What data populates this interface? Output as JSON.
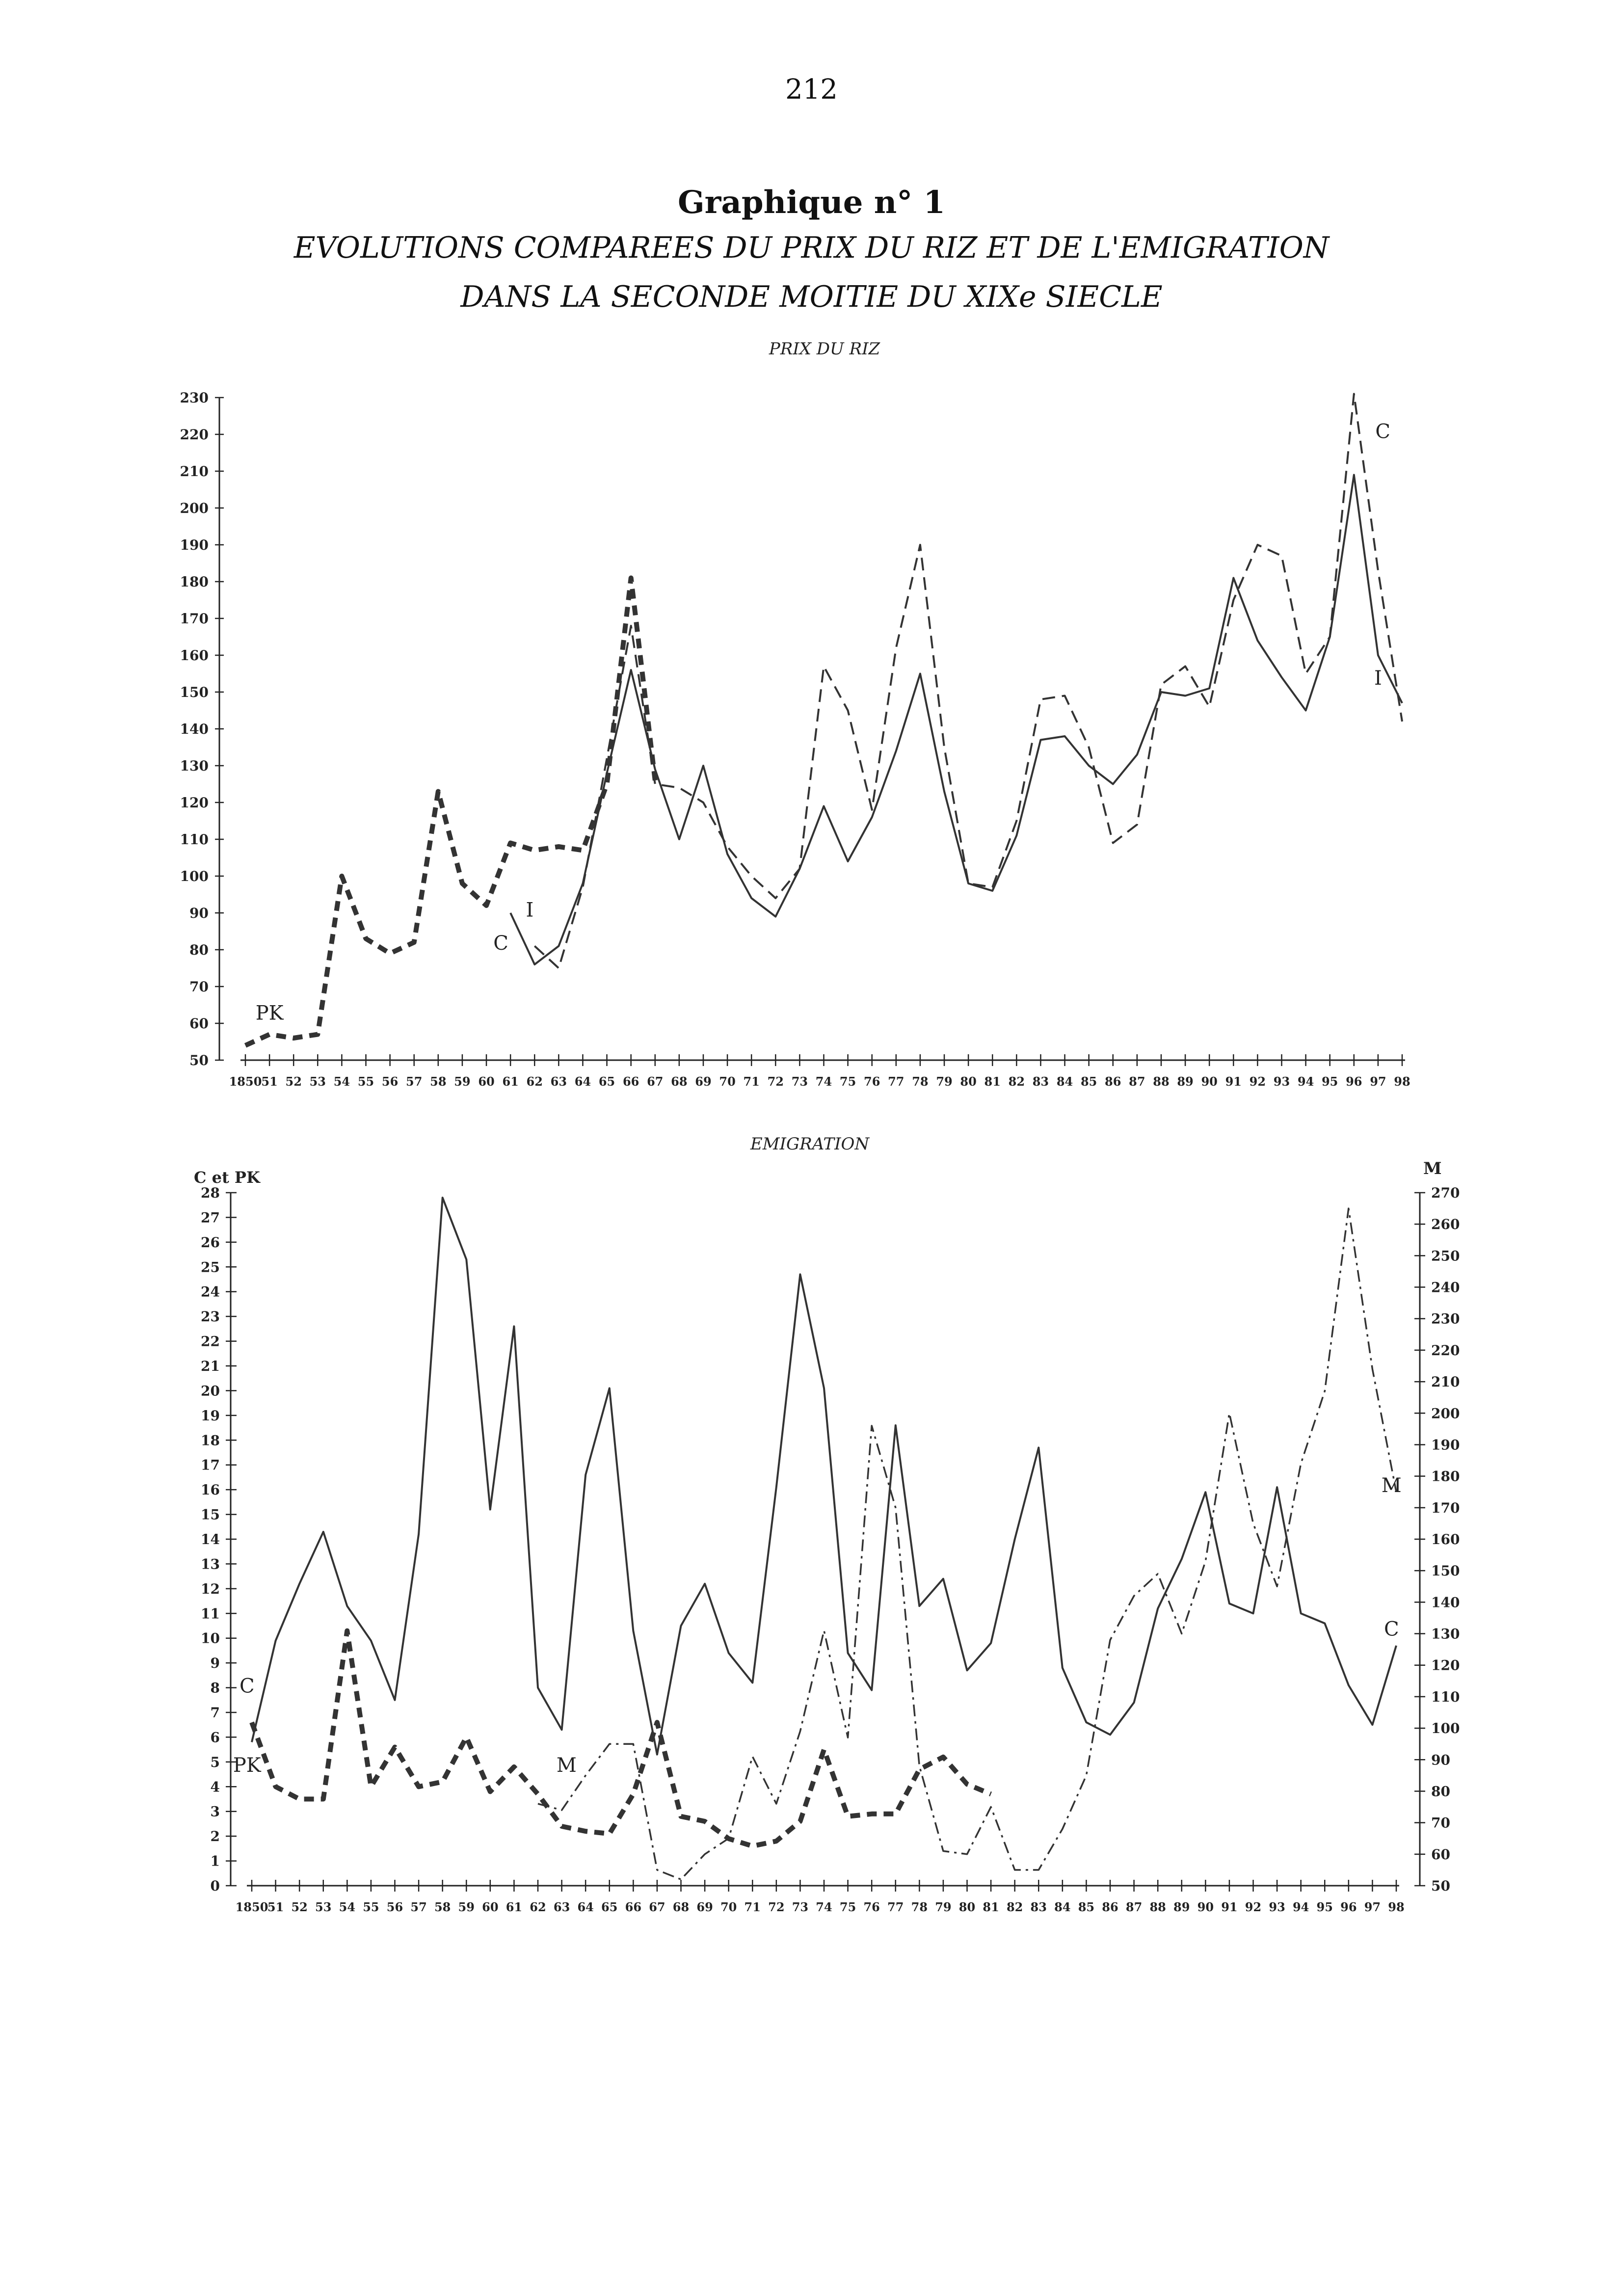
{
  "page": {
    "number": "212",
    "title": "Graphique n° 1",
    "subtitle_line1": "EVOLUTIONS COMPAREES DU PRIX DU RIZ ET DE L'EMIGRATION",
    "subtitle_line2": "DANS LA SECONDE MOITIE DU XIXe SIECLE"
  },
  "chart_data": [
    {
      "type": "line",
      "title": "PRIX DU RIZ",
      "xlabel": "",
      "ylabel": "",
      "ylim": [
        50,
        230
      ],
      "y_ticks": [
        50,
        60,
        70,
        80,
        90,
        100,
        110,
        120,
        130,
        140,
        150,
        160,
        170,
        180,
        190,
        200,
        210,
        220,
        230
      ],
      "x_tick_labels": [
        "1850",
        "51",
        "52",
        "53",
        "54",
        "55",
        "56",
        "57",
        "58",
        "59",
        "60",
        "61",
        "62",
        "63",
        "64",
        "65",
        "66",
        "67",
        "68",
        "69",
        "70",
        "71",
        "72",
        "73",
        "74",
        "75",
        "76",
        "77",
        "78",
        "79",
        "80",
        "81",
        "82",
        "83",
        "84",
        "85",
        "86",
        "87",
        "88",
        "89",
        "90",
        "91",
        "92",
        "93",
        "94",
        "95",
        "96",
        "97",
        "98"
      ],
      "grid": false,
      "series": [
        {
          "name": "PK",
          "style": "bold-dash",
          "x": [
            1850,
            1851,
            1852,
            1853,
            1854,
            1855,
            1856,
            1857,
            1858,
            1859,
            1860,
            1861,
            1862,
            1863,
            1864,
            1865,
            1866,
            1867
          ],
          "values": [
            54,
            57,
            56,
            57,
            100,
            83,
            79,
            82,
            123,
            98,
            92,
            109,
            107,
            108,
            107,
            125,
            181,
            126
          ]
        },
        {
          "name": "C",
          "style": "dashed",
          "x": [
            1862,
            1863,
            1864,
            1865,
            1866,
            1867,
            1868,
            1869,
            1870,
            1871,
            1872,
            1873,
            1874,
            1875,
            1876,
            1877,
            1878,
            1879,
            1880,
            1881,
            1882,
            1883,
            1884,
            1885,
            1886,
            1887,
            1888,
            1889,
            1890,
            1891,
            1892,
            1893,
            1894,
            1895,
            1896,
            1897,
            1898
          ],
          "values": [
            81,
            75,
            97,
            132,
            168,
            125,
            124,
            120,
            108,
            100,
            94,
            102,
            157,
            145,
            118,
            162,
            190,
            135,
            98,
            97,
            115,
            148,
            149,
            135,
            109,
            114,
            152,
            157,
            146,
            175,
            190,
            187,
            155,
            165,
            231,
            183,
            142
          ]
        },
        {
          "name": "I",
          "style": "solid",
          "x": [
            1861,
            1862,
            1863,
            1864,
            1865,
            1866,
            1867,
            1868,
            1869,
            1870,
            1871,
            1872,
            1873,
            1874,
            1875,
            1876,
            1877,
            1878,
            1879,
            1880,
            1881,
            1882,
            1883,
            1884,
            1885,
            1886,
            1887,
            1888,
            1889,
            1890,
            1891,
            1892,
            1893,
            1894,
            1895,
            1896,
            1897,
            1898
          ],
          "values": [
            90,
            76,
            81,
            98,
            128,
            156,
            129,
            110,
            130,
            106,
            94,
            89,
            102,
            119,
            104,
            116,
            134,
            155,
            123,
            98,
            96,
            111,
            137,
            138,
            130,
            125,
            133,
            150,
            149,
            151,
            181,
            164,
            154,
            145,
            165,
            209,
            160,
            147
          ]
        }
      ],
      "annotations": [
        {
          "text": "PK",
          "x": 1851,
          "y": 61
        },
        {
          "text": "C",
          "x": 1860.6,
          "y": 80
        },
        {
          "text": "I",
          "x": 1861.8,
          "y": 89
        },
        {
          "text": "C",
          "x": 1897.2,
          "y": 219
        },
        {
          "text": "I",
          "x": 1897.0,
          "y": 152
        }
      ]
    },
    {
      "type": "line",
      "title": "EMIGRATION",
      "xlabel": "",
      "ylabel_left": "C et PK",
      "ylabel_right": "M",
      "ylim_left": [
        0,
        28
      ],
      "ylim_right": [
        50,
        270
      ],
      "y_ticks_left": [
        0,
        1,
        2,
        3,
        4,
        5,
        6,
        7,
        8,
        9,
        10,
        11,
        12,
        13,
        14,
        15,
        16,
        17,
        18,
        19,
        20,
        21,
        22,
        23,
        24,
        25,
        26,
        27,
        28
      ],
      "y_ticks_right": [
        50,
        60,
        70,
        80,
        90,
        100,
        110,
        120,
        130,
        140,
        150,
        160,
        170,
        180,
        190,
        200,
        210,
        220,
        230,
        240,
        250,
        260,
        270
      ],
      "x_tick_labels": [
        "1850",
        "51",
        "52",
        "53",
        "54",
        "55",
        "56",
        "57",
        "58",
        "59",
        "60",
        "61",
        "62",
        "63",
        "64",
        "65",
        "66",
        "67",
        "68",
        "69",
        "70",
        "71",
        "72",
        "73",
        "74",
        "75",
        "76",
        "77",
        "78",
        "79",
        "80",
        "81",
        "82",
        "83",
        "84",
        "85",
        "86",
        "87",
        "88",
        "89",
        "90",
        "91",
        "92",
        "93",
        "94",
        "95",
        "96",
        "97",
        "98"
      ],
      "grid": false,
      "series": [
        {
          "name": "C",
          "style": "solid",
          "axis": "left",
          "x": [
            1850,
            1851,
            1852,
            1853,
            1854,
            1855,
            1856,
            1857,
            1858,
            1859,
            1860,
            1861,
            1862,
            1863,
            1864,
            1865,
            1866,
            1867,
            1868,
            1869,
            1870,
            1871,
            1872,
            1873,
            1874,
            1875,
            1876,
            1877,
            1878,
            1879,
            1880,
            1881,
            1882,
            1883,
            1884,
            1885,
            1886,
            1887,
            1888,
            1889,
            1890,
            1891,
            1892,
            1893,
            1894,
            1895,
            1896,
            1897,
            1898
          ],
          "values": [
            5.8,
            9.9,
            12.2,
            14.3,
            11.3,
            9.9,
            7.5,
            14.2,
            27.8,
            25.3,
            15.2,
            22.6,
            8.0,
            6.3,
            16.6,
            20.1,
            10.3,
            5.3,
            10.5,
            12.2,
            9.4,
            8.2,
            16.1,
            24.7,
            20.1,
            9.4,
            7.9,
            18.6,
            11.3,
            12.4,
            8.7,
            9.8,
            14.0,
            17.7,
            8.8,
            6.6,
            6.1,
            7.4,
            11.2,
            13.2,
            15.9,
            11.4,
            11.0,
            16.1,
            11.0,
            10.6,
            8.1,
            6.5,
            9.7
          ]
        },
        {
          "name": "PK",
          "style": "bold-dash",
          "axis": "left",
          "x": [
            1850,
            1851,
            1852,
            1853,
            1854,
            1855,
            1856,
            1857,
            1858,
            1859,
            1860,
            1861,
            1862,
            1863,
            1864,
            1865,
            1866,
            1867,
            1868,
            1869,
            1870,
            1871,
            1872,
            1873,
            1874,
            1875,
            1876,
            1877,
            1878,
            1879,
            1880,
            1881
          ],
          "values": [
            6.6,
            4.0,
            3.5,
            3.5,
            10.3,
            4.0,
            5.6,
            4.0,
            4.2,
            6.0,
            3.8,
            4.8,
            3.7,
            2.4,
            2.2,
            2.1,
            3.7,
            6.6,
            2.8,
            2.6,
            1.9,
            1.6,
            1.8,
            2.6,
            5.5,
            2.8,
            2.9,
            2.9,
            4.7,
            5.2,
            4.1,
            3.7
          ]
        },
        {
          "name": "M",
          "style": "dash-dot",
          "axis": "right",
          "x": [
            1850,
            1851,
            1852,
            1853,
            1854,
            1855,
            1856,
            1857,
            1858,
            1859,
            1860,
            1861,
            1862,
            1863,
            1864,
            1865,
            1866,
            1867,
            1868,
            1869,
            1870,
            1871,
            1872,
            1873,
            1874,
            1875,
            1876,
            1877,
            1878,
            1879,
            1880,
            1881,
            1882,
            1883,
            1884,
            1885,
            1886,
            1887,
            1888,
            1889,
            1890,
            1891,
            1892,
            1893,
            1894,
            1895,
            1896,
            1897,
            1898
          ],
          "values": [
            null,
            null,
            null,
            null,
            null,
            null,
            null,
            null,
            null,
            null,
            null,
            null,
            76,
            74,
            85,
            95,
            95,
            55,
            52,
            60,
            65,
            91,
            76,
            99,
            131,
            97,
            196,
            170,
            88,
            61,
            60,
            75,
            55,
            55,
            68,
            85,
            128,
            142,
            149,
            130,
            153,
            200,
            165,
            145,
            184,
            207,
            265,
            214,
            175
          ]
        }
      ],
      "annotations": [
        {
          "text": "C",
          "x": 1849.8,
          "y": 7.8,
          "axis": "left"
        },
        {
          "text": "PK",
          "x": 1849.8,
          "y": 4.6,
          "axis": "left"
        },
        {
          "text": "M",
          "x": 1863.2,
          "y": 4.6,
          "axis": "left"
        },
        {
          "text": "M",
          "x": 1897.8,
          "y": 15.9,
          "axis": "left"
        },
        {
          "text": "C",
          "x": 1897.8,
          "y": 10.1,
          "axis": "left"
        }
      ]
    }
  ]
}
